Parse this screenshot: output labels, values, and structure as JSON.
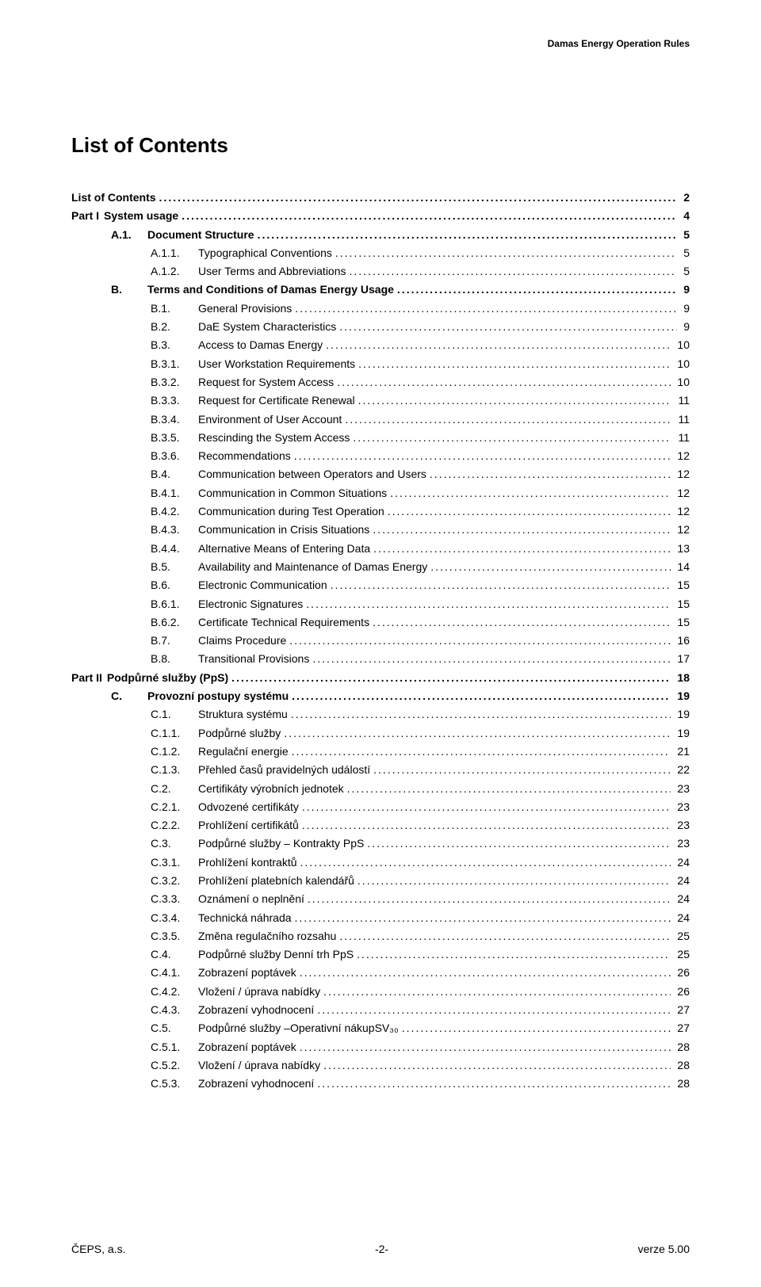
{
  "header_right": "Damas Energy Operation Rules",
  "title": "List of Contents",
  "toc": [
    {
      "level": 0,
      "code": "",
      "label": "List of Contents",
      "page": "2"
    },
    {
      "level": 0,
      "code": "Part I",
      "label": "System usage",
      "page": "4"
    },
    {
      "level": 1,
      "code": "A.1.",
      "label": "Document Structure",
      "page": "5"
    },
    {
      "level": 2,
      "code": "A.1.1.",
      "label": "Typographical Conventions",
      "page": "5"
    },
    {
      "level": 2,
      "code": "A.1.2.",
      "label": "User Terms and Abbreviations",
      "page": "5"
    },
    {
      "level": 1,
      "code": "B.",
      "label": "Terms and Conditions of Damas Energy Usage",
      "page": "9"
    },
    {
      "level": 2,
      "code": "B.1.",
      "label": "General Provisions",
      "page": "9"
    },
    {
      "level": 2,
      "code": "B.2.",
      "label": "DaE System Characteristics",
      "page": "9"
    },
    {
      "level": 2,
      "code": "B.3.",
      "label": "Access to Damas Energy",
      "page": "10"
    },
    {
      "level": 2,
      "code": "B.3.1.",
      "label": "User Workstation Requirements",
      "page": "10"
    },
    {
      "level": 2,
      "code": "B.3.2.",
      "label": "Request for System Access",
      "page": "10"
    },
    {
      "level": 2,
      "code": "B.3.3.",
      "label": "Request for Certificate Renewal",
      "page": "11"
    },
    {
      "level": 2,
      "code": "B.3.4.",
      "label": "Environment of User Account",
      "page": "11"
    },
    {
      "level": 2,
      "code": "B.3.5.",
      "label": "Rescinding the System Access",
      "page": "11"
    },
    {
      "level": 2,
      "code": "B.3.6.",
      "label": "Recommendations",
      "page": "12"
    },
    {
      "level": 2,
      "code": "B.4.",
      "label": "Communication between Operators and Users",
      "page": "12"
    },
    {
      "level": 2,
      "code": "B.4.1.",
      "label": "Communication in Common Situations",
      "page": "12"
    },
    {
      "level": 2,
      "code": "B.4.2.",
      "label": "Communication during Test Operation",
      "page": "12"
    },
    {
      "level": 2,
      "code": "B.4.3.",
      "label": "Communication in Crisis Situations",
      "page": "12"
    },
    {
      "level": 2,
      "code": "B.4.4.",
      "label": "Alternative Means of Entering Data",
      "page": "13"
    },
    {
      "level": 2,
      "code": "B.5.",
      "label": "Availability and Maintenance of Damas Energy",
      "page": "14"
    },
    {
      "level": 2,
      "code": "B.6.",
      "label": "Electronic Communication",
      "page": "15"
    },
    {
      "level": 2,
      "code": "B.6.1.",
      "label": "Electronic Signatures",
      "page": "15"
    },
    {
      "level": 2,
      "code": "B.6.2.",
      "label": "Certificate Technical Requirements",
      "page": "15"
    },
    {
      "level": 2,
      "code": "B.7.",
      "label": "Claims Procedure",
      "page": "16"
    },
    {
      "level": 2,
      "code": "B.8.",
      "label": "Transitional Provisions",
      "page": "17"
    },
    {
      "level": 0,
      "code": "Part II",
      "label": "Podpůrné služby (PpS)",
      "page": "18"
    },
    {
      "level": 1,
      "code": "C.",
      "label": "Provozní postupy systému",
      "page": "19"
    },
    {
      "level": 2,
      "code": "C.1.",
      "label": "Struktura systému",
      "page": "19"
    },
    {
      "level": 2,
      "code": "C.1.1.",
      "label": "Podpůrné služby",
      "page": "19"
    },
    {
      "level": 2,
      "code": "C.1.2.",
      "label": "Regulační energie",
      "page": "21"
    },
    {
      "level": 2,
      "code": "C.1.3.",
      "label": "Přehled časů pravidelných událostí",
      "page": "22"
    },
    {
      "level": 2,
      "code": "C.2.",
      "label": "Certifikáty výrobních jednotek",
      "page": "23"
    },
    {
      "level": 2,
      "code": "C.2.1.",
      "label": "Odvozené certifikáty",
      "page": "23"
    },
    {
      "level": 2,
      "code": "C.2.2.",
      "label": "Prohlížení certifikátů",
      "page": "23"
    },
    {
      "level": 2,
      "code": "C.3.",
      "label": "Podpůrné služby – Kontrakty PpS",
      "page": "23"
    },
    {
      "level": 2,
      "code": "C.3.1.",
      "label": "Prohlížení kontraktů",
      "page": "24"
    },
    {
      "level": 2,
      "code": "C.3.2.",
      "label": "Prohlížení platebních kalendářů",
      "page": "24"
    },
    {
      "level": 2,
      "code": "C.3.3.",
      "label": "Oznámení o neplnění",
      "page": "24"
    },
    {
      "level": 2,
      "code": "C.3.4.",
      "label": "Technická náhrada",
      "page": "24"
    },
    {
      "level": 2,
      "code": "C.3.5.",
      "label": "Změna regulačního rozsahu",
      "page": "25"
    },
    {
      "level": 2,
      "code": "C.4.",
      "label": "Podpůrné služby Denní trh PpS",
      "page": "25"
    },
    {
      "level": 2,
      "code": "C.4.1.",
      "label": "Zobrazení poptávek",
      "page": "26"
    },
    {
      "level": 2,
      "code": "C.4.2.",
      "label": "Vložení / úprava nabídky",
      "page": "26"
    },
    {
      "level": 2,
      "code": "C.4.3.",
      "label": "Zobrazení vyhodnocení",
      "page": "27"
    },
    {
      "level": 2,
      "code": "C.5.",
      "label": "Podpůrné služby –Operativní nákupSV₃₀",
      "page": "27"
    },
    {
      "level": 2,
      "code": "C.5.1.",
      "label": "Zobrazení poptávek",
      "page": "28"
    },
    {
      "level": 2,
      "code": "C.5.2.",
      "label": "Vložení / úprava nabídky",
      "page": "28"
    },
    {
      "level": 2,
      "code": "C.5.3.",
      "label": "Zobrazení vyhodnocení",
      "page": "28"
    }
  ],
  "footer": {
    "left": "ČEPS, a.s.",
    "center": "-2-",
    "right": "verze 5.00"
  }
}
